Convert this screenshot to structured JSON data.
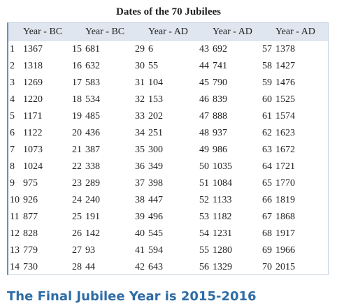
{
  "header": {
    "title": "Dates of the 70 Jubilees"
  },
  "table": {
    "columns": [
      "Year - BC",
      "Year - BC",
      "Year - AD",
      "Year - AD",
      "Year - AD"
    ],
    "rows": [
      [
        [
          1,
          1367
        ],
        [
          15,
          681
        ],
        [
          29,
          6
        ],
        [
          43,
          692
        ],
        [
          57,
          1378
        ]
      ],
      [
        [
          2,
          1318
        ],
        [
          16,
          632
        ],
        [
          30,
          55
        ],
        [
          44,
          741
        ],
        [
          58,
          1427
        ]
      ],
      [
        [
          3,
          1269
        ],
        [
          17,
          583
        ],
        [
          31,
          104
        ],
        [
          45,
          790
        ],
        [
          59,
          1476
        ]
      ],
      [
        [
          4,
          1220
        ],
        [
          18,
          534
        ],
        [
          32,
          153
        ],
        [
          46,
          839
        ],
        [
          60,
          1525
        ]
      ],
      [
        [
          5,
          1171
        ],
        [
          19,
          485
        ],
        [
          33,
          202
        ],
        [
          47,
          888
        ],
        [
          61,
          1574
        ]
      ],
      [
        [
          6,
          1122
        ],
        [
          20,
          436
        ],
        [
          34,
          251
        ],
        [
          48,
          937
        ],
        [
          62,
          1623
        ]
      ],
      [
        [
          7,
          1073
        ],
        [
          21,
          387
        ],
        [
          35,
          300
        ],
        [
          49,
          986
        ],
        [
          63,
          1672
        ]
      ],
      [
        [
          8,
          1024
        ],
        [
          22,
          338
        ],
        [
          36,
          349
        ],
        [
          50,
          1035
        ],
        [
          64,
          1721
        ]
      ],
      [
        [
          9,
          975
        ],
        [
          23,
          289
        ],
        [
          37,
          398
        ],
        [
          51,
          1084
        ],
        [
          65,
          1770
        ]
      ],
      [
        [
          10,
          926
        ],
        [
          24,
          240
        ],
        [
          38,
          447
        ],
        [
          52,
          1133
        ],
        [
          66,
          1819
        ]
      ],
      [
        [
          11,
          877
        ],
        [
          25,
          191
        ],
        [
          39,
          496
        ],
        [
          53,
          1182
        ],
        [
          67,
          1868
        ]
      ],
      [
        [
          12,
          828
        ],
        [
          26,
          142
        ],
        [
          40,
          545
        ],
        [
          54,
          1231
        ],
        [
          68,
          1917
        ]
      ],
      [
        [
          13,
          779
        ],
        [
          27,
          93
        ],
        [
          41,
          594
        ],
        [
          55,
          1280
        ],
        [
          69,
          1966
        ]
      ],
      [
        [
          14,
          730
        ],
        [
          28,
          44
        ],
        [
          42,
          643
        ],
        [
          56,
          1329
        ],
        [
          70,
          2015
        ]
      ]
    ]
  },
  "footer": {
    "text": "The Final Jubilee Year is 2015-2016"
  }
}
